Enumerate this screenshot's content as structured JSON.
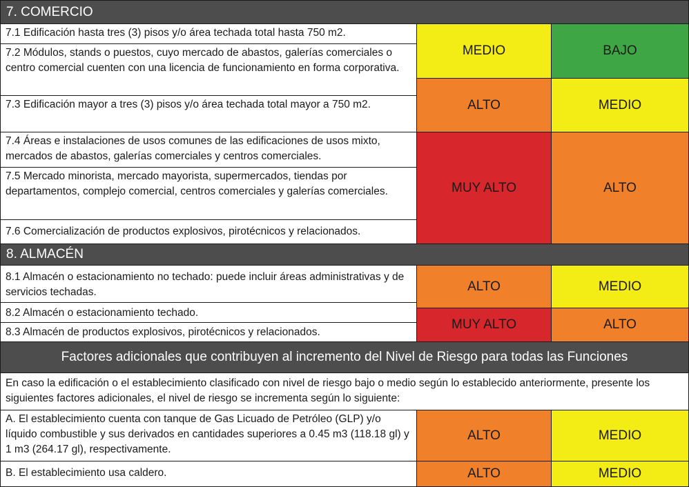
{
  "sections": {
    "comercio": {
      "title": "7. COMERCIO",
      "items": [
        "7.1 Edificación hasta tres (3) pisos y/o área techada total hasta 750 m2.",
        "7.2 Módulos, stands o puestos, cuyo mercado de abastos, galerías comerciales o centro comercial cuenten con una licencia de funcionamiento en forma corporativa.",
        "7.3 Edificación mayor a tres (3) pisos y/o área techada total mayor a 750 m2.",
        "7.4 Áreas e instalaciones de usos comunes de las edificaciones de usos mixto, mercados de abastos, galerías comerciales y centros comerciales.",
        "7.5 Mercado minorista, mercado mayorista, supermercados, tiendas por departamentos, complejo comercial, centros comerciales y galerías comerciales.",
        "7.6 Comercialización de productos explosivos, pirotécnicos y relacionados."
      ],
      "levels": [
        {
          "col1": "MEDIO",
          "col2": "BAJO",
          "color1": "#f3ec15",
          "color2": "#3ea645"
        },
        {
          "col1": "ALTO",
          "col2": "MEDIO",
          "color1": "#f1802a",
          "color2": "#f3ec15"
        },
        {
          "col1": "MUY ALTO",
          "col2": "ALTO",
          "color1": "#d8262d",
          "color2": "#f1802a"
        }
      ]
    },
    "almacen": {
      "title": "8. ALMACÉN",
      "items": [
        "8.1 Almacén o estacionamiento no techado: puede incluir áreas administrativas y de servicios techadas.",
        "8.2 Almacén o estacionamiento techado.",
        "8.3 Almacén de productos explosivos, pirotécnicos y relacionados."
      ],
      "levels": [
        {
          "col1": "ALTO",
          "col2": "MEDIO",
          "color1": "#f1802a",
          "color2": "#f3ec15"
        },
        {
          "col1": "MUY ALTO",
          "col2": "ALTO",
          "color1": "#d8262d",
          "color2": "#f1802a"
        }
      ]
    },
    "factores": {
      "title": "Factores adicionales que contribuyen al incremento del Nivel de Riesgo para todas las Funciones",
      "intro": "En caso la edificación o el establecimiento clasificado con nivel de riesgo bajo o medio según lo establecido anteriormente, presente los siguientes factores adicionales, el nivel de riesgo se incrementa según lo siguiente:",
      "items": [
        "A. El establecimiento cuenta con tanque de Gas Licuado de Petróleo (GLP) y/o líquido combustible y sus derivados en cantidades superiores a 0.45 m3 (118.18 gl) y 1 m3 (264.17 gl), respectivamente.",
        "B. El establecimiento usa caldero."
      ],
      "levels": [
        {
          "col1": "ALTO",
          "col2": "MEDIO",
          "color1": "#f1802a",
          "color2": "#f3ec15"
        },
        {
          "col1": "ALTO",
          "col2": "MEDIO",
          "color1": "#f1802a",
          "color2": "#f3ec15"
        }
      ]
    }
  }
}
